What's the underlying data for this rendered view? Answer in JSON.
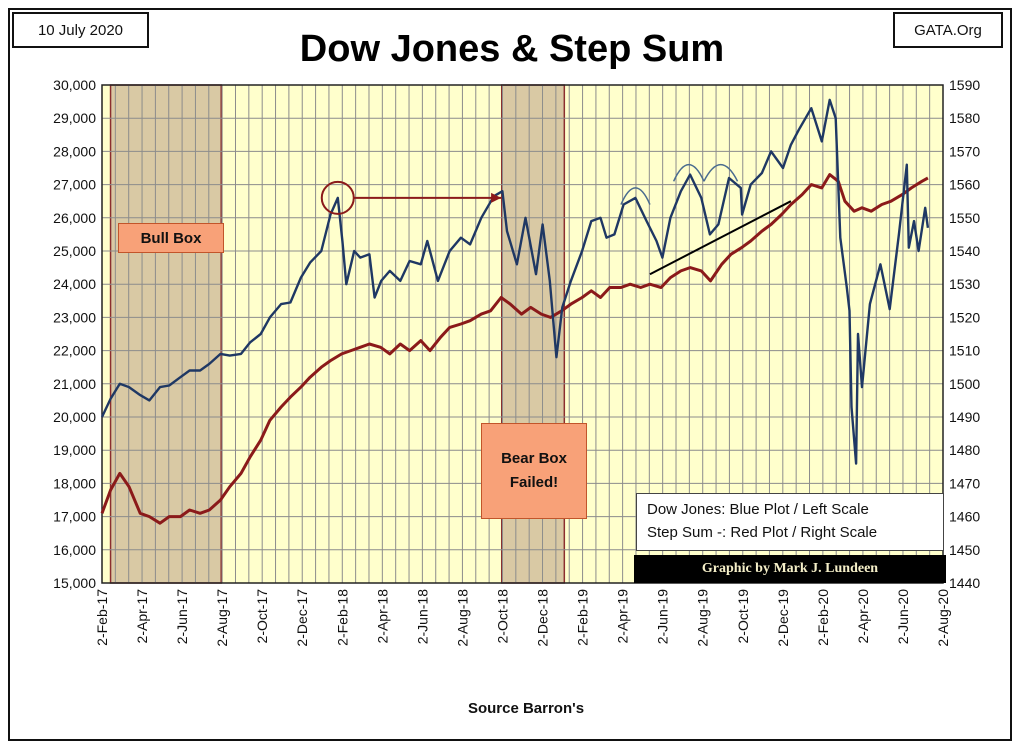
{
  "header": {
    "date": "10 July 2020",
    "site": "GATA.Org",
    "title": "Dow Jones & Step Sum"
  },
  "footer": {
    "source": "Source Barron's"
  },
  "legend": {
    "line1": "Dow Jones: Blue Plot / Left Scale",
    "line2": "Step Sum -: Red Plot / Right Scale"
  },
  "credit": "Graphic by Mark J. Lundeen",
  "annotations": {
    "bull_box": "Bull Box",
    "bear_box": "Bear Box\nFailed!"
  },
  "colors": {
    "plot_bg": "#ffffcc",
    "grid": "#8c8c8c",
    "dow": "#1f3864",
    "step_sum": "#8b1a1a",
    "shade_box": "#d9c9a4",
    "shade_border": "#8b2e2e",
    "callout_fill": "#f8a178"
  },
  "chart_data": {
    "type": "line",
    "title": "Dow Jones & Step Sum",
    "xlabel": "Source Barron's",
    "x_tick_labels": [
      "2-Feb-17",
      "2-Apr-17",
      "2-Jun-17",
      "2-Aug-17",
      "2-Oct-17",
      "2-Dec-17",
      "2-Feb-18",
      "2-Apr-18",
      "2-Jun-18",
      "2-Aug-18",
      "2-Oct-18",
      "2-Dec-18",
      "2-Feb-19",
      "2-Apr-19",
      "2-Jun-19",
      "2-Aug-19",
      "2-Oct-19",
      "2-Dec-19",
      "2-Feb-20",
      "2-Apr-20",
      "2-Jun-20",
      "2-Aug-20"
    ],
    "y_left": {
      "min": 15000,
      "max": 30000,
      "step": 1000,
      "tick_labels": [
        "15,000",
        "16,000",
        "17,000",
        "18,000",
        "19,000",
        "20,000",
        "21,000",
        "22,000",
        "23,000",
        "24,000",
        "25,000",
        "26,000",
        "27,000",
        "28,000",
        "29,000",
        "30,000"
      ]
    },
    "y_right": {
      "min": 1440,
      "max": 1590,
      "step": 10,
      "tick_labels": [
        "1440",
        "1450",
        "1460",
        "1470",
        "1480",
        "1490",
        "1500",
        "1510",
        "1520",
        "1530",
        "1540",
        "1550",
        "1560",
        "1570",
        "1580",
        "1590"
      ]
    },
    "grid": true,
    "legend_position": "bottom-right",
    "shaded_ranges": [
      {
        "name": "Bull Box",
        "from": "2017-02-15",
        "to": "2017-08-02"
      },
      {
        "name": "Bear Box Failed!",
        "from": "2018-10-02",
        "to": "2019-01-05"
      }
    ],
    "series": [
      {
        "axis": "left",
        "points": [
          [
            "2017-02-02",
            20000
          ],
          [
            "2017-02-15",
            20550
          ],
          [
            "2017-03-01",
            21000
          ],
          [
            "2017-03-15",
            20900
          ],
          [
            "2017-04-01",
            20660
          ],
          [
            "2017-04-15",
            20500
          ],
          [
            "2017-05-01",
            20900
          ],
          [
            "2017-05-15",
            20950
          ],
          [
            "2017-06-01",
            21200
          ],
          [
            "2017-06-15",
            21400
          ],
          [
            "2017-07-01",
            21400
          ],
          [
            "2017-07-15",
            21600
          ],
          [
            "2017-08-01",
            21900
          ],
          [
            "2017-08-15",
            21850
          ],
          [
            "2017-09-01",
            21900
          ],
          [
            "2017-09-15",
            22250
          ],
          [
            "2017-10-01",
            22500
          ],
          [
            "2017-10-15",
            23000
          ],
          [
            "2017-11-01",
            23400
          ],
          [
            "2017-11-15",
            23450
          ],
          [
            "2017-12-01",
            24200
          ],
          [
            "2017-12-15",
            24650
          ],
          [
            "2018-01-01",
            25000
          ],
          [
            "2018-01-15",
            26100
          ],
          [
            "2018-01-26",
            26600
          ],
          [
            "2018-02-02",
            25300
          ],
          [
            "2018-02-08",
            24000
          ],
          [
            "2018-02-20",
            25000
          ],
          [
            "2018-03-01",
            24800
          ],
          [
            "2018-03-15",
            24900
          ],
          [
            "2018-03-23",
            23600
          ],
          [
            "2018-04-02",
            24100
          ],
          [
            "2018-04-15",
            24400
          ],
          [
            "2018-05-01",
            24100
          ],
          [
            "2018-05-15",
            24700
          ],
          [
            "2018-06-01",
            24600
          ],
          [
            "2018-06-11",
            25300
          ],
          [
            "2018-06-27",
            24100
          ],
          [
            "2018-07-15",
            25000
          ],
          [
            "2018-08-01",
            25400
          ],
          [
            "2018-08-15",
            25200
          ],
          [
            "2018-09-01",
            26000
          ],
          [
            "2018-09-20",
            26650
          ],
          [
            "2018-10-03",
            26800
          ],
          [
            "2018-10-10",
            25600
          ],
          [
            "2018-10-25",
            24600
          ],
          [
            "2018-11-07",
            26000
          ],
          [
            "2018-11-23",
            24300
          ],
          [
            "2018-12-03",
            25800
          ],
          [
            "2018-12-14",
            24100
          ],
          [
            "2018-12-24",
            21800
          ],
          [
            "2019-01-02",
            23300
          ],
          [
            "2019-01-15",
            24100
          ],
          [
            "2019-02-01",
            25000
          ],
          [
            "2019-02-15",
            25900
          ],
          [
            "2019-03-01",
            26000
          ],
          [
            "2019-03-10",
            25400
          ],
          [
            "2019-03-22",
            25500
          ],
          [
            "2019-04-05",
            26400
          ],
          [
            "2019-04-23",
            26600
          ],
          [
            "2019-05-10",
            25900
          ],
          [
            "2019-05-25",
            25300
          ],
          [
            "2019-06-03",
            24800
          ],
          [
            "2019-06-15",
            26000
          ],
          [
            "2019-07-01",
            26800
          ],
          [
            "2019-07-15",
            27300
          ],
          [
            "2019-08-01",
            26600
          ],
          [
            "2019-08-14",
            25500
          ],
          [
            "2019-08-27",
            25800
          ],
          [
            "2019-09-12",
            27200
          ],
          [
            "2019-09-30",
            26900
          ],
          [
            "2019-10-02",
            26100
          ],
          [
            "2019-10-15",
            27000
          ],
          [
            "2019-11-01",
            27350
          ],
          [
            "2019-11-15",
            28000
          ],
          [
            "2019-12-03",
            27500
          ],
          [
            "2019-12-15",
            28200
          ],
          [
            "2019-12-27",
            28650
          ],
          [
            "2020-01-15",
            29300
          ],
          [
            "2020-01-31",
            28300
          ],
          [
            "2020-02-12",
            29550
          ],
          [
            "2020-02-21",
            29000
          ],
          [
            "2020-02-28",
            25400
          ],
          [
            "2020-03-09",
            23900
          ],
          [
            "2020-03-13",
            23200
          ],
          [
            "2020-03-16",
            20300
          ],
          [
            "2020-03-23",
            18600
          ],
          [
            "2020-03-26",
            22500
          ],
          [
            "2020-04-01",
            20900
          ],
          [
            "2020-04-13",
            23400
          ],
          [
            "2020-04-29",
            24600
          ],
          [
            "2020-05-13",
            23250
          ],
          [
            "2020-05-27",
            25500
          ],
          [
            "2020-06-08",
            27600
          ],
          [
            "2020-06-11",
            25100
          ],
          [
            "2020-06-19",
            25900
          ],
          [
            "2020-06-26",
            25000
          ],
          [
            "2020-07-06",
            26300
          ],
          [
            "2020-07-10",
            25700
          ]
        ]
      },
      {
        "axis": "right",
        "points": [
          [
            "2017-02-02",
            1461
          ],
          [
            "2017-02-15",
            1468
          ],
          [
            "2017-03-01",
            1473
          ],
          [
            "2017-03-15",
            1469
          ],
          [
            "2017-04-01",
            1461
          ],
          [
            "2017-04-15",
            1460
          ],
          [
            "2017-05-01",
            1458
          ],
          [
            "2017-05-15",
            1460
          ],
          [
            "2017-06-01",
            1460
          ],
          [
            "2017-06-15",
            1462
          ],
          [
            "2017-07-01",
            1461
          ],
          [
            "2017-07-15",
            1462
          ],
          [
            "2017-08-01",
            1465
          ],
          [
            "2017-08-15",
            1469
          ],
          [
            "2017-09-01",
            1473
          ],
          [
            "2017-09-15",
            1478
          ],
          [
            "2017-10-01",
            1483
          ],
          [
            "2017-10-15",
            1489
          ],
          [
            "2017-11-01",
            1493
          ],
          [
            "2017-11-15",
            1496
          ],
          [
            "2017-12-01",
            1499
          ],
          [
            "2017-12-15",
            1502
          ],
          [
            "2018-01-01",
            1505
          ],
          [
            "2018-01-15",
            1507
          ],
          [
            "2018-02-01",
            1509
          ],
          [
            "2018-02-15",
            1510
          ],
          [
            "2018-03-01",
            1511
          ],
          [
            "2018-03-15",
            1512
          ],
          [
            "2018-04-01",
            1511
          ],
          [
            "2018-04-15",
            1509
          ],
          [
            "2018-05-01",
            1512
          ],
          [
            "2018-05-15",
            1510
          ],
          [
            "2018-06-01",
            1513
          ],
          [
            "2018-06-15",
            1510
          ],
          [
            "2018-07-01",
            1514
          ],
          [
            "2018-07-15",
            1517
          ],
          [
            "2018-08-01",
            1518
          ],
          [
            "2018-08-15",
            1519
          ],
          [
            "2018-09-01",
            1521
          ],
          [
            "2018-09-15",
            1522
          ],
          [
            "2018-10-01",
            1526
          ],
          [
            "2018-10-15",
            1524
          ],
          [
            "2018-11-01",
            1521
          ],
          [
            "2018-11-15",
            1523
          ],
          [
            "2018-12-01",
            1521
          ],
          [
            "2018-12-15",
            1520
          ],
          [
            "2019-01-01",
            1522
          ],
          [
            "2019-01-15",
            1524
          ],
          [
            "2019-02-01",
            1526
          ],
          [
            "2019-02-15",
            1528
          ],
          [
            "2019-03-01",
            1526
          ],
          [
            "2019-03-15",
            1529
          ],
          [
            "2019-04-01",
            1529
          ],
          [
            "2019-04-15",
            1530
          ],
          [
            "2019-05-01",
            1529
          ],
          [
            "2019-05-15",
            1530
          ],
          [
            "2019-06-01",
            1529
          ],
          [
            "2019-06-15",
            1532
          ],
          [
            "2019-07-01",
            1534
          ],
          [
            "2019-07-15",
            1535
          ],
          [
            "2019-08-01",
            1534
          ],
          [
            "2019-08-15",
            1531
          ],
          [
            "2019-09-01",
            1536
          ],
          [
            "2019-09-15",
            1539
          ],
          [
            "2019-10-01",
            1541
          ],
          [
            "2019-10-15",
            1543
          ],
          [
            "2019-11-01",
            1546
          ],
          [
            "2019-11-15",
            1548
          ],
          [
            "2019-12-01",
            1551
          ],
          [
            "2019-12-15",
            1554
          ],
          [
            "2020-01-01",
            1557
          ],
          [
            "2020-01-15",
            1560
          ],
          [
            "2020-01-31",
            1559
          ],
          [
            "2020-02-12",
            1563
          ],
          [
            "2020-02-25",
            1561
          ],
          [
            "2020-03-06",
            1555
          ],
          [
            "2020-03-20",
            1552
          ],
          [
            "2020-04-01",
            1553
          ],
          [
            "2020-04-15",
            1552
          ],
          [
            "2020-05-01",
            1554
          ],
          [
            "2020-05-15",
            1555
          ],
          [
            "2020-06-01",
            1557
          ],
          [
            "2020-06-15",
            1559
          ],
          [
            "2020-07-01",
            1561
          ],
          [
            "2020-07-10",
            1562
          ]
        ]
      }
    ]
  }
}
